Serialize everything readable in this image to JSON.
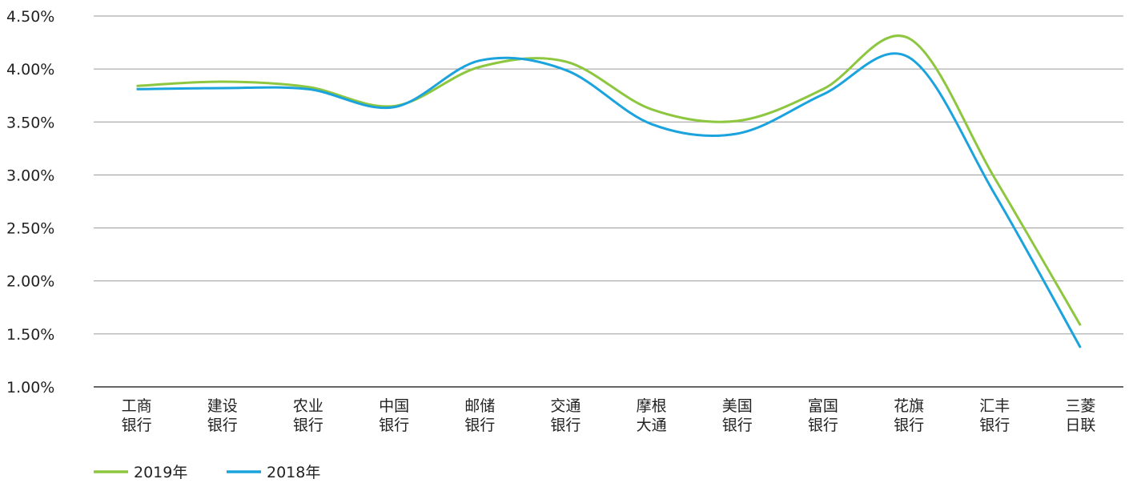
{
  "chart_data": {
    "type": "line",
    "title": "",
    "xlabel": "",
    "ylabel": "",
    "categories": [
      [
        "工商",
        "银行"
      ],
      [
        "建设",
        "银行"
      ],
      [
        "农业",
        "银行"
      ],
      [
        "中国",
        "银行"
      ],
      [
        "邮储",
        "银行"
      ],
      [
        "交通",
        "银行"
      ],
      [
        "摩根",
        "大通"
      ],
      [
        "美国",
        "银行"
      ],
      [
        "富国",
        "银行"
      ],
      [
        "花旗",
        "银行"
      ],
      [
        "汇丰",
        "银行"
      ],
      [
        "三菱",
        "日联"
      ]
    ],
    "y_ticks": [
      "1.00%",
      "1.50%",
      "2.00%",
      "2.50%",
      "3.00%",
      "3.50%",
      "4.00%",
      "4.50%"
    ],
    "ylim": [
      1.0,
      4.5
    ],
    "y_unit": "%",
    "grid": true,
    "smooth": true,
    "legend_position": "bottom-left",
    "series": [
      {
        "name": "2019年",
        "color": "#8dc63f",
        "values": [
          3.84,
          3.88,
          3.83,
          3.65,
          4.02,
          4.07,
          3.62,
          3.51,
          3.81,
          4.29,
          2.97,
          1.58
        ]
      },
      {
        "name": "2018年",
        "color": "#1aa3dc",
        "values": [
          3.81,
          3.82,
          3.81,
          3.64,
          4.08,
          3.99,
          3.48,
          3.39,
          3.76,
          4.11,
          2.82,
          1.37
        ]
      }
    ]
  }
}
